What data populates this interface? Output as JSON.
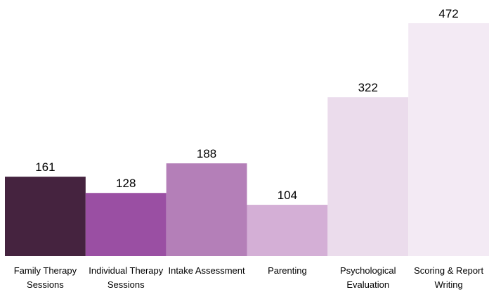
{
  "chart_data": {
    "type": "bar",
    "categories": [
      "Family Therapy Sessions",
      "Individual Therapy Sessions",
      "Intake Assessment",
      "Parenting",
      "Psychological Evaluation",
      "Scoring & Report Writing"
    ],
    "values": [
      161,
      128,
      188,
      104,
      322,
      472
    ],
    "colors": [
      "#45233f",
      "#9a4fa3",
      "#b47fb8",
      "#d4afd6",
      "#ebdcec",
      "#f3eaf4"
    ],
    "data_labels": true
  }
}
